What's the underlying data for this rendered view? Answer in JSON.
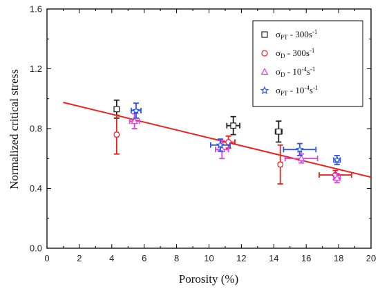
{
  "chart_data": {
    "type": "scatter",
    "title": "",
    "xlabel": "Porosity (%)",
    "ylabel": "Normalized critical stress",
    "xlim": [
      0,
      20
    ],
    "ylim": [
      0.0,
      1.6
    ],
    "x_ticks": [
      "0",
      "2",
      "4",
      "6",
      "8",
      "10",
      "12",
      "14",
      "16",
      "18",
      "20"
    ],
    "y_ticks": [
      "0.0",
      "0.4",
      "0.8",
      "1.2",
      "1.6"
    ],
    "grid": false,
    "legend_position": "top-right",
    "series": [
      {
        "name": "σPT - 300s-1",
        "legend": {
          "sym": "σ",
          "sub": "PT",
          "mid": " - 300s",
          "sup": "-1"
        },
        "marker": "square",
        "color": "#222222",
        "points": [
          {
            "x": 4.3,
            "y": 0.93,
            "xerr": 0.15,
            "yerr": 0.06
          },
          {
            "x": 11.5,
            "y": 0.82,
            "xerr": 0.4,
            "yerr": 0.06
          },
          {
            "x": 14.3,
            "y": 0.78,
            "xerr": 0.2,
            "yerr": 0.07
          }
        ]
      },
      {
        "name": "σD - 300s-1",
        "legend": {
          "sym": "σ",
          "sub": "D",
          "mid": " - 300s",
          "sup": "-1"
        },
        "marker": "circle",
        "color": "#e8231e",
        "points": [
          {
            "x": 4.3,
            "y": 0.76,
            "xerr": 0.1,
            "yerr": 0.13
          },
          {
            "x": 11.2,
            "y": 0.71,
            "xerr": 0.4,
            "yerr": 0.04
          },
          {
            "x": 14.4,
            "y": 0.56,
            "xerr": 0.1,
            "yerr": 0.13
          },
          {
            "x": 17.8,
            "y": 0.49,
            "xerr": 1.0,
            "yerr": 0.03
          }
        ]
      },
      {
        "name": "σD - 10-4s-1",
        "legend": {
          "sym": "σ",
          "sub": "D",
          "mid": " - 10",
          "sup": "-4",
          "tail": "s",
          "sup2": "-1"
        },
        "marker": "triangle",
        "color": "#e040e0",
        "points": [
          {
            "x": 5.4,
            "y": 0.85,
            "xerr": 0.3,
            "yerr": 0.05
          },
          {
            "x": 10.8,
            "y": 0.66,
            "xerr": 0.4,
            "yerr": 0.06
          },
          {
            "x": 15.7,
            "y": 0.6,
            "xerr": 1.0,
            "yerr": 0.03
          },
          {
            "x": 17.9,
            "y": 0.47,
            "xerr": 0.2,
            "yerr": 0.03
          }
        ]
      },
      {
        "name": "σPT - 10-4s-1",
        "legend": {
          "sym": "σ",
          "sub": "PT",
          "mid": " - 10",
          "sup": "-4",
          "tail": "s",
          "sup2": "-1"
        },
        "marker": "star",
        "color": "#2a52e8",
        "points": [
          {
            "x": 5.5,
            "y": 0.92,
            "xerr": 0.3,
            "yerr": 0.05
          },
          {
            "x": 10.7,
            "y": 0.69,
            "xerr": 0.6,
            "yerr": 0.04
          },
          {
            "x": 15.6,
            "y": 0.66,
            "xerr": 1.0,
            "yerr": 0.04
          },
          {
            "x": 17.9,
            "y": 0.59,
            "xerr": 0.2,
            "yerr": 0.03
          }
        ]
      }
    ],
    "fit_line": {
      "color": "#f0201a",
      "x": [
        1,
        20
      ],
      "y": [
        0.975,
        0.475
      ]
    }
  }
}
